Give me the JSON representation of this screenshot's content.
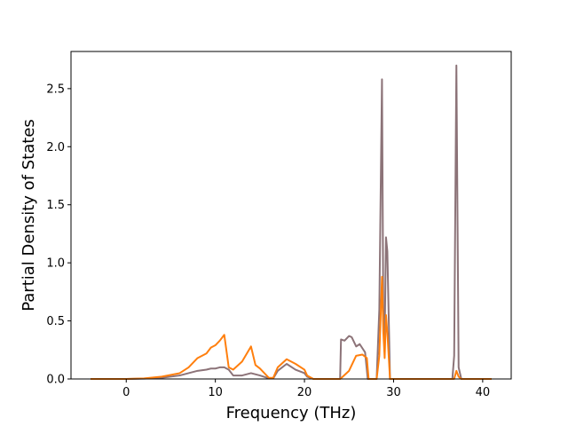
{
  "chart_data": {
    "type": "line",
    "title": "",
    "xlabel": "Frequency (THz)",
    "ylabel": "Partial Density of States",
    "xlim": [
      -6.2,
      43.2
    ],
    "ylim": [
      0,
      2.82
    ],
    "xticks": [
      0,
      10,
      20,
      30,
      40
    ],
    "xtick_labels": [
      "0",
      "10",
      "20",
      "30",
      "40"
    ],
    "yticks": [
      0.0,
      0.5,
      1.0,
      1.5,
      2.0,
      2.5
    ],
    "ytick_labels": [
      "0.0",
      "0.5",
      "1.0",
      "1.5",
      "2.0",
      "2.5"
    ],
    "grid": false,
    "legend": "none",
    "series": [
      {
        "color": "#8c7378",
        "points": [
          [
            -4,
            0
          ],
          [
            0,
            0
          ],
          [
            2,
            0.003
          ],
          [
            4,
            0.01
          ],
          [
            6,
            0.03
          ],
          [
            7,
            0.05
          ],
          [
            8,
            0.07
          ],
          [
            9,
            0.08
          ],
          [
            9.5,
            0.09
          ],
          [
            10,
            0.09
          ],
          [
            10.5,
            0.1
          ],
          [
            11,
            0.1
          ],
          [
            11.5,
            0.08
          ],
          [
            12,
            0.03
          ],
          [
            13,
            0.03
          ],
          [
            14,
            0.05
          ],
          [
            15,
            0.03
          ],
          [
            16,
            0.005
          ],
          [
            16.5,
            0.005
          ],
          [
            17,
            0.07
          ],
          [
            18,
            0.13
          ],
          [
            19,
            0.08
          ],
          [
            20,
            0.05
          ],
          [
            20.3,
            0.02
          ],
          [
            21,
            0
          ],
          [
            24,
            0
          ],
          [
            24.1,
            0.34
          ],
          [
            24.5,
            0.33
          ],
          [
            25,
            0.37
          ],
          [
            25.3,
            0.36
          ],
          [
            25.8,
            0.28
          ],
          [
            26.2,
            0.3
          ],
          [
            26.8,
            0.23
          ],
          [
            27.1,
            0
          ],
          [
            28.1,
            0
          ],
          [
            28.4,
            0.6
          ],
          [
            28.7,
            2.58
          ],
          [
            28.85,
            0.5
          ],
          [
            29.0,
            0.35
          ],
          [
            29.15,
            1.22
          ],
          [
            29.3,
            1.1
          ],
          [
            29.6,
            0
          ],
          [
            36.6,
            0
          ],
          [
            36.8,
            0.2
          ],
          [
            37.05,
            2.7
          ],
          [
            37.3,
            0.1
          ],
          [
            37.6,
            0
          ],
          [
            41,
            0
          ]
        ]
      },
      {
        "color": "#ff7f0e",
        "points": [
          [
            -4,
            0
          ],
          [
            0,
            0
          ],
          [
            2,
            0.005
          ],
          [
            4,
            0.02
          ],
          [
            6,
            0.05
          ],
          [
            7,
            0.1
          ],
          [
            8,
            0.18
          ],
          [
            9,
            0.22
          ],
          [
            9.5,
            0.27
          ],
          [
            10,
            0.29
          ],
          [
            10.5,
            0.33
          ],
          [
            11,
            0.38
          ],
          [
            11.5,
            0.1
          ],
          [
            12,
            0.08
          ],
          [
            13,
            0.15
          ],
          [
            14,
            0.28
          ],
          [
            14.5,
            0.12
          ],
          [
            15,
            0.09
          ],
          [
            16,
            0.01
          ],
          [
            16.5,
            0.01
          ],
          [
            17,
            0.1
          ],
          [
            18,
            0.17
          ],
          [
            19,
            0.13
          ],
          [
            20,
            0.08
          ],
          [
            20.3,
            0.03
          ],
          [
            21,
            0
          ],
          [
            24,
            0
          ],
          [
            24.3,
            0.02
          ],
          [
            25,
            0.07
          ],
          [
            25.8,
            0.2
          ],
          [
            26.5,
            0.21
          ],
          [
            27.0,
            0.18
          ],
          [
            27.2,
            0
          ],
          [
            28.1,
            0
          ],
          [
            28.4,
            0.2
          ],
          [
            28.7,
            0.88
          ],
          [
            28.85,
            0.4
          ],
          [
            29.0,
            0.18
          ],
          [
            29.15,
            0.55
          ],
          [
            29.3,
            0.4
          ],
          [
            29.6,
            0
          ],
          [
            36.8,
            0
          ],
          [
            37.05,
            0.07
          ],
          [
            37.3,
            0.02
          ],
          [
            37.6,
            0
          ],
          [
            41,
            0
          ]
        ]
      }
    ]
  }
}
